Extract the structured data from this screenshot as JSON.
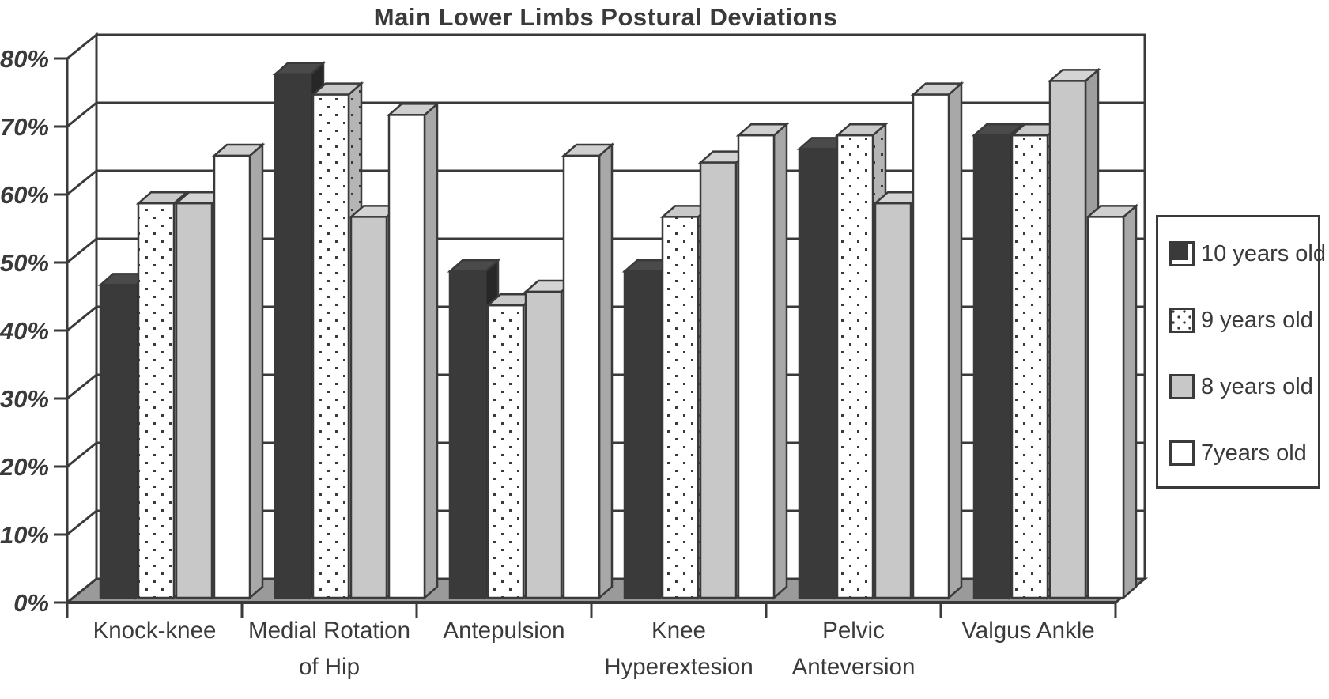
{
  "chart_data": {
    "type": "bar",
    "view": "3d-clustered-column",
    "title": "Main Lower Limbs Postural Deviations",
    "categories": [
      "Knock-knee",
      "Medial Rotation of Hip",
      "Antepulsion",
      "Knee Hyperextesion",
      "Pelvic Anteversion",
      "Valgus Ankle"
    ],
    "category_label_lines": [
      [
        "Knock-knee"
      ],
      [
        "Medial Rotation",
        "of Hip"
      ],
      [
        "Antepulsion"
      ],
      [
        "Knee",
        "Hyperextesion"
      ],
      [
        "Pelvic",
        "Anteversion"
      ],
      [
        "Valgus Ankle"
      ]
    ],
    "series": [
      {
        "name": "10 years old",
        "key": "s10",
        "swatch": "dark-solid",
        "values": [
          46,
          77,
          48,
          48,
          66,
          68
        ]
      },
      {
        "name": "9 years old",
        "key": "s9",
        "swatch": "white-dotted",
        "values": [
          58,
          74,
          43,
          56,
          68,
          68
        ]
      },
      {
        "name": "8 years old",
        "key": "s8",
        "swatch": "light-gray",
        "values": [
          58,
          56,
          45,
          64,
          58,
          76
        ]
      },
      {
        "name": "7years old",
        "key": "s7",
        "swatch": "white",
        "values": [
          65,
          71,
          65,
          68,
          74,
          56
        ]
      }
    ],
    "y_axis": {
      "min": 0,
      "max": 80,
      "step": 10,
      "unit": "%",
      "tick_labels": [
        "0%",
        "10%",
        "20%",
        "30%",
        "40%",
        "50%",
        "60%",
        "70%",
        "80%"
      ]
    },
    "legend_position": "right",
    "grid": true,
    "colors": {
      "ink": "#3a3a3a",
      "series_10": "#3a3a3a",
      "series_9_bg": "#ffffff",
      "series_9_dot": "#3a3a3a",
      "series_8": "#c8c8c8",
      "series_7": "#ffffff",
      "floor": "#9a9a9a",
      "wall": "#ffffff"
    }
  }
}
